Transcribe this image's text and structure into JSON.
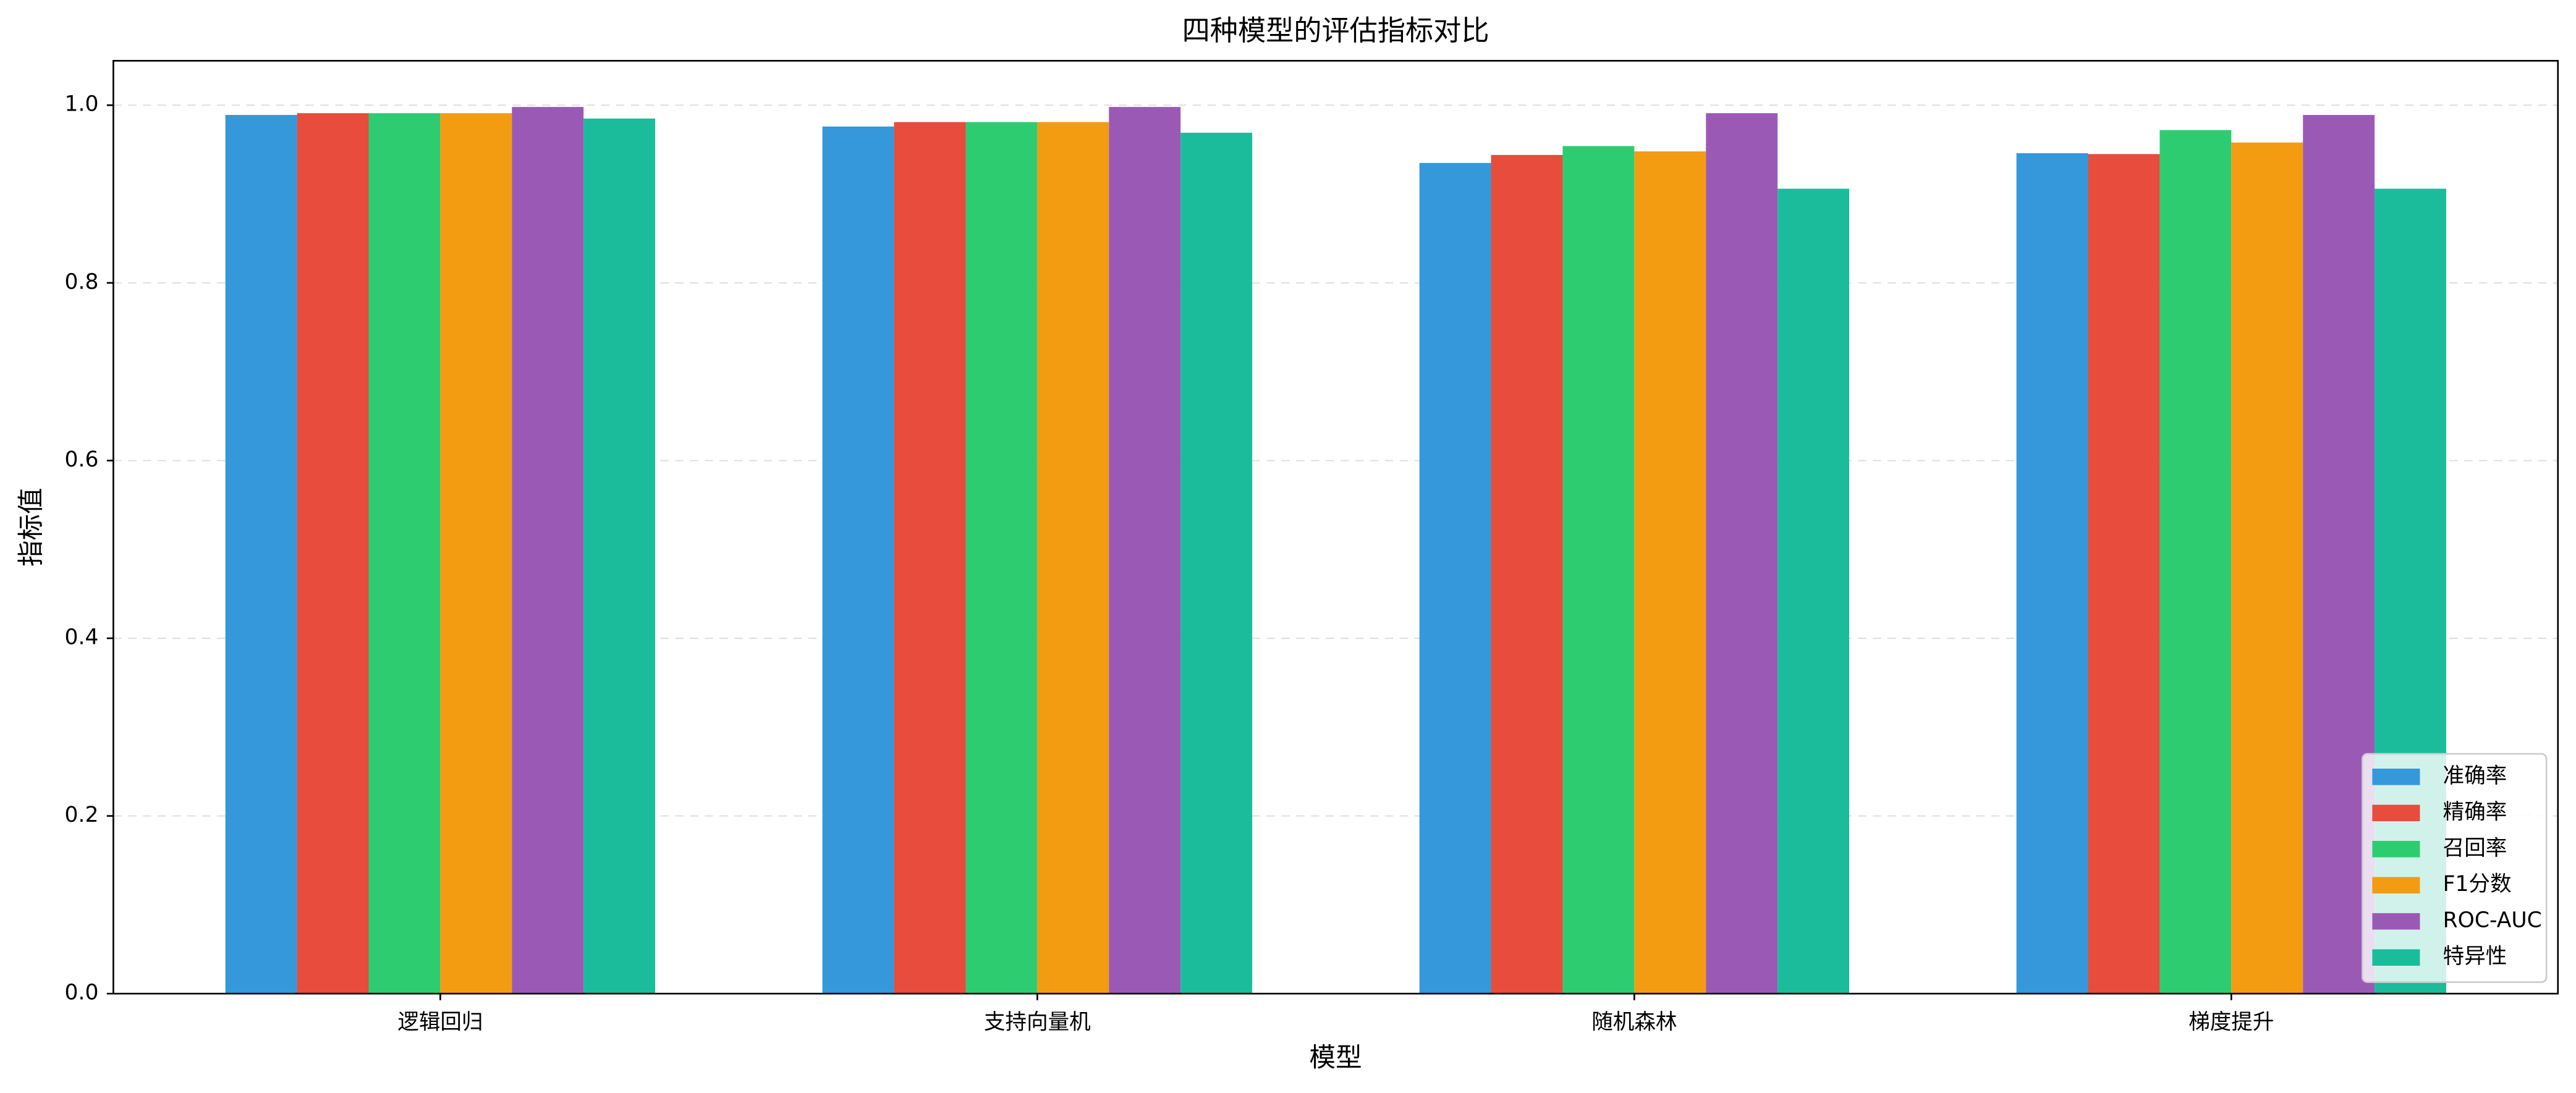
{
  "chart_data": {
    "type": "bar",
    "title": "四种模型的评估指标对比",
    "x_label": "模型",
    "y_label": "指标值",
    "categories": [
      "逻辑回归",
      "支持向量机",
      "随机森林",
      "梯度提升"
    ],
    "series": [
      {
        "name": "准确率",
        "color": "#3498db",
        "values": [
          0.989,
          0.976,
          0.935,
          0.946
        ]
      },
      {
        "name": "精确率",
        "color": "#e74c3c",
        "values": [
          0.991,
          0.981,
          0.944,
          0.945
        ]
      },
      {
        "name": "召回率",
        "color": "#2ecc71",
        "values": [
          0.991,
          0.981,
          0.954,
          0.972
        ]
      },
      {
        "name": "F1分数",
        "color": "#f39c12",
        "values": [
          0.991,
          0.981,
          0.948,
          0.958
        ]
      },
      {
        "name": "ROC-AUC",
        "color": "#9b59b6",
        "values": [
          0.998,
          0.998,
          0.991,
          0.989
        ]
      },
      {
        "name": "特异性",
        "color": "#1abc9c",
        "values": [
          0.985,
          0.969,
          0.906,
          0.906
        ]
      }
    ],
    "ylim": [
      0,
      1.05
    ],
    "yticks": [
      {
        "value": 0.0,
        "label": "0.0"
      },
      0.2,
      0.4,
      0.6,
      0.8,
      {
        "value": 1.0,
        "label": "1.0"
      }
    ],
    "grid": true,
    "legend": "lower right"
  }
}
